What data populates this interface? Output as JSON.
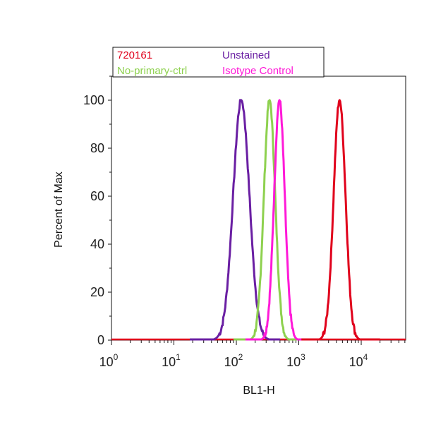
{
  "chart_data": {
    "type": "line",
    "xlabel": "BL1-H",
    "ylabel": "Percent of Max",
    "x_scale": "log",
    "xlim": [
      1,
      60000
    ],
    "ylim": [
      0,
      110
    ],
    "grid": false,
    "legend_position": "top",
    "y_ticks": [
      "0",
      "20",
      "40",
      "60",
      "80",
      "100"
    ],
    "x_ticks": [
      {
        "base": "10",
        "exp": "0"
      },
      {
        "base": "10",
        "exp": "1"
      },
      {
        "base": "10",
        "exp": "2"
      },
      {
        "base": "10",
        "exp": "3"
      },
      {
        "base": "10",
        "exp": "4"
      }
    ],
    "series": [
      {
        "name": "720161",
        "color": "#e0001b",
        "peak_x": 4500,
        "width_decades": 0.095,
        "x_min": 1100,
        "x_max": 20000
      },
      {
        "name": "No-primary-ctrl",
        "color": "#8ed14f",
        "peak_x": 340,
        "width_decades": 0.09,
        "x_min": 90,
        "x_max": 1200
      },
      {
        "name": "Unstained",
        "color": "#6a1fa3",
        "peak_x": 120,
        "width_decades": 0.13,
        "x_min": 18,
        "x_max": 500
      },
      {
        "name": "Isotype Control",
        "color": "#ff19d8",
        "peak_x": 490,
        "width_decades": 0.085,
        "x_min": 140,
        "x_max": 1500
      }
    ]
  }
}
